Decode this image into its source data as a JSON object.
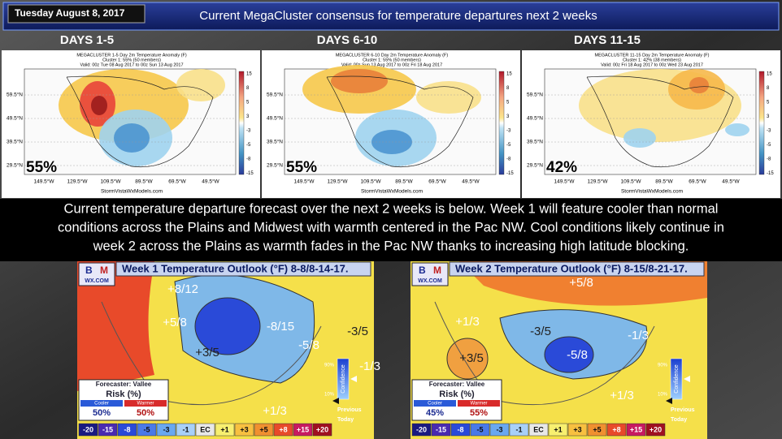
{
  "header": {
    "date": "Tuesday August 8, 2017",
    "title": "Current MegaCluster consensus for temperature departures next 2 weeks"
  },
  "map_axes": {
    "lat": [
      "59.5°N",
      "49.5°N",
      "39.5°N",
      "29.5°N"
    ],
    "lon": [
      "149.5°W",
      "129.5°W",
      "109.5°W",
      "89.5°W",
      "69.5°W",
      "49.5°W"
    ],
    "colorbar": [
      "15",
      "8",
      "5",
      "3",
      "-3",
      "-5",
      "-8",
      "-15"
    ],
    "credit": "StormVistaWxModels.com"
  },
  "maps": [
    {
      "label": "DAYS 1-5",
      "title": "MEGACLUSTER 1-5 Day 2m Temperature Anomaly (F)",
      "cluster": "Cluster 1: 55% (50 members)",
      "valid": "Valid: 00z Tue 08 Aug 2017 to 00z Sun 13 Aug 2017",
      "percent": "55%"
    },
    {
      "label": "DAYS 6-10",
      "title": "MEGACLUSTER 6-10 Day 2m Temperature Anomaly (F)",
      "cluster": "Cluster 1: 55% (50 members)",
      "valid": "Valid: 00z Sun 13 Aug 2017 to 00z Fri 18 Aug 2017",
      "percent": "55%"
    },
    {
      "label": "DAYS 11-15",
      "title": "MEGACLUSTER 11-15 Day 2m Temperature Anomaly (F)",
      "cluster": "Cluster 1: 42% (38 members)",
      "valid": "Valid: 00z Fri 18 Aug 2017 to 00z Wed 23 Aug 2017",
      "percent": "42%"
    }
  ],
  "summary": [
    "Current temperature departure forecast over the next 2 weeks is below. Week 1 will feature cooler than normal",
    "conditions across the Plains and Midwest with warmth centered in the Pac NW. Cool conditions likely continue in",
    "week 2 across the Plains as warmth fades in the Pac NW thanks to increasing high latitude blocking."
  ],
  "outlook_legend": {
    "logo": [
      "B",
      "M",
      "WX.COM"
    ],
    "forecaster": "Forecaster: Vallee",
    "risk": "Risk (%)",
    "cooler": "Cooler",
    "warmer": "Warmer",
    "confidence": "Confidence",
    "conf_high": "90%",
    "conf_low": "10%",
    "previous": "Previous",
    "today": "Today",
    "scale": [
      "-20",
      "-15",
      "-8",
      "-5",
      "-3",
      "-1",
      "EC",
      "+1",
      "+3",
      "+5",
      "+8",
      "+15",
      "+20"
    ]
  },
  "outlooks": [
    {
      "title": "Week 1 Temperature Outlook (°F) 8-8/8-14-17.",
      "cooler_pct": "50%",
      "warmer_pct": "50%",
      "labels": [
        "+8/12",
        "+5/8",
        "+3/5",
        "-8/15",
        "-5/8",
        "-3/5",
        "-1/3",
        "+1/3"
      ]
    },
    {
      "title": "Week 2 Temperature Outlook (°F) 8-15/8-21-17.",
      "cooler_pct": "45%",
      "warmer_pct": "55%",
      "labels": [
        "+5/8",
        "+1/3",
        "+3/5",
        "-3/5",
        "-5/8",
        "-1/3",
        "+1/3"
      ]
    }
  ]
}
